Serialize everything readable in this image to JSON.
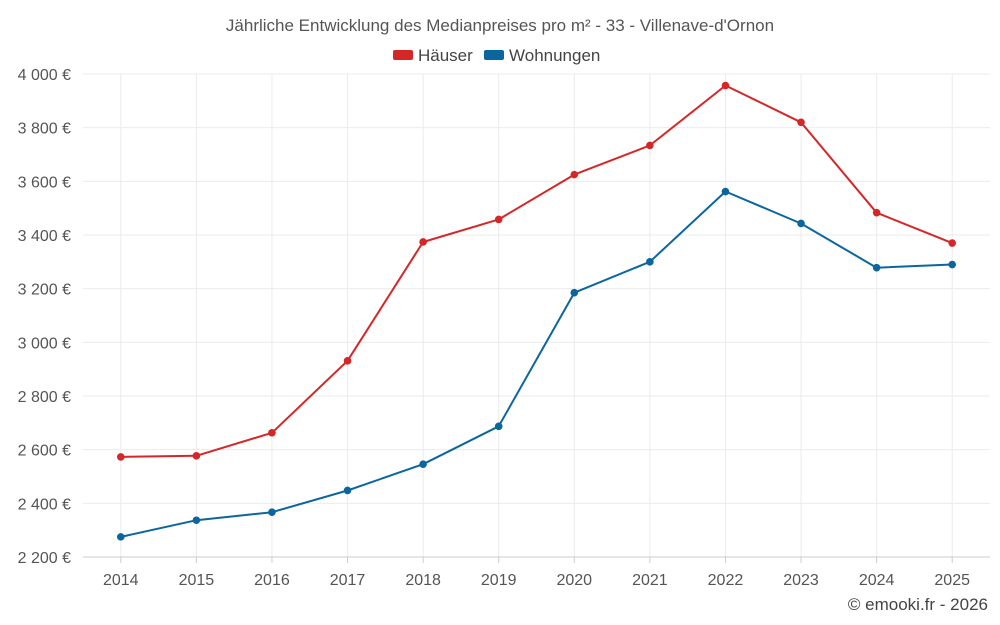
{
  "chart_data": {
    "type": "line",
    "title": "Jährliche Entwicklung des Medianpreises pro m² - 33 - Villenave-d'Ornon",
    "categories": [
      "2014",
      "2015",
      "2016",
      "2017",
      "2018",
      "2019",
      "2020",
      "2021",
      "2022",
      "2023",
      "2024",
      "2025"
    ],
    "series": [
      {
        "name": "Häuser",
        "color": "#d62728",
        "values": [
          2573,
          2577,
          2663,
          2931,
          3374,
          3458,
          3625,
          3734,
          3957,
          3820,
          3483,
          3370
        ]
      },
      {
        "name": "Wohnungen",
        "color": "#0b66a0",
        "values": [
          2275,
          2337,
          2367,
          2448,
          2546,
          2687,
          3185,
          3300,
          3562,
          3443,
          3278,
          3290
        ]
      }
    ],
    "ylim": [
      2200,
      4000
    ],
    "y_ticks": [
      2200,
      2400,
      2600,
      2800,
      3000,
      3200,
      3400,
      3600,
      3800,
      4000
    ],
    "y_tick_labels": [
      "2 200 €",
      "2 400 €",
      "2 600 €",
      "2 800 €",
      "3 000 €",
      "3 200 €",
      "3 400 €",
      "3 600 €",
      "3 800 €",
      "4 000 €"
    ],
    "xlabel": "",
    "ylabel": "",
    "grid": true,
    "legend_position": "top-center"
  },
  "footer": {
    "copyright": "© emooki.fr - 2026"
  }
}
